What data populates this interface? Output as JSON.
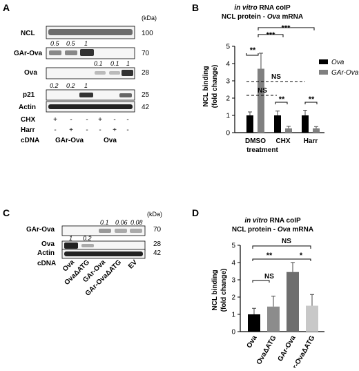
{
  "panels": {
    "A": {
      "letter": "A",
      "unit": "(kDa)",
      "blots": [
        {
          "label": "NCL",
          "mw": "100",
          "quant": []
        },
        {
          "label": "GAr-Ova",
          "mw": "70",
          "quant": [
            "0.5",
            "0.5",
            "1"
          ]
        },
        {
          "label": "Ova",
          "mw": "28",
          "quant": [
            "0.1",
            "0.1",
            "1"
          ]
        },
        {
          "label": "p21",
          "mw": "25",
          "quant": [
            "0.2",
            "0.2",
            "1"
          ]
        },
        {
          "label": "Actin",
          "mw": "42",
          "quant": []
        }
      ],
      "conditions": [
        {
          "label": "CHX",
          "marks": [
            "+",
            "-",
            "-",
            "+",
            "-",
            "-"
          ]
        },
        {
          "label": "Harr",
          "marks": [
            "-",
            "+",
            "-",
            "-",
            "+",
            "-"
          ]
        }
      ],
      "cdna_label": "cDNA",
      "cdna_groups": [
        "GAr-Ova",
        "Ova"
      ]
    },
    "B": {
      "letter": "B",
      "title_line1_italic": "in vitro",
      "title_line1_rest": " RNA coIP",
      "title_line2_main": "NCL protein - ",
      "title_line2_italic": "Ova",
      "title_line2_end": " mRNA",
      "ylabel_line1": "NCL binding",
      "ylabel_line2": "(fold change)",
      "xlabel": "treatment",
      "legend": [
        "Ova",
        "GAr-Ova"
      ],
      "sig": [
        "**",
        "***",
        "***",
        "NS",
        "NS",
        "**",
        "**"
      ]
    },
    "C": {
      "letter": "C",
      "unit": "(kDa)",
      "blots": [
        {
          "label": "GAr-Ova",
          "mw": "70",
          "quant": [
            "0.1",
            "0.06",
            "0.08"
          ]
        },
        {
          "label": "Ova",
          "mw": "28",
          "quant": [
            "1",
            "0.2"
          ]
        },
        {
          "label": "Actin",
          "mw": "42",
          "quant": []
        }
      ],
      "cdna_label": "cDNA",
      "lanes": [
        "Ova",
        "OvaΔATG",
        "GAr-Ova",
        "GAr-OvaΔATG",
        "EV"
      ]
    },
    "D": {
      "letter": "D",
      "title_line1_italic": "in vitro",
      "title_line1_rest": " RNA coIP",
      "title_line2_main": "NCL protein - ",
      "title_line2_italic": "Ova",
      "title_line2_end": " mRNA",
      "ylabel_line1": "NCL binding",
      "ylabel_line2": "(fold change)",
      "sig": [
        "NS",
        "**",
        "NS",
        "*"
      ]
    }
  },
  "chart_data": [
    {
      "type": "bar",
      "panel": "B",
      "categories": [
        "DMSO",
        "CHX",
        "Harr"
      ],
      "series": [
        {
          "name": "Ova",
          "color": "#000000",
          "values": [
            1.0,
            1.0,
            1.0
          ],
          "errors": [
            0.2,
            0.25,
            0.3
          ]
        },
        {
          "name": "GAr-Ova",
          "color": "#808080",
          "values": [
            3.7,
            0.25,
            0.25
          ],
          "errors": [
            0.9,
            0.12,
            0.1
          ]
        }
      ],
      "ylim": [
        0,
        5
      ],
      "yticks": [
        0,
        1,
        2,
        3,
        4,
        5
      ],
      "legend_position": "right"
    },
    {
      "type": "bar",
      "panel": "D",
      "categories": [
        "Ova",
        "OvaΔATG",
        "GAr-Ova",
        "GAr-OvaΔATG"
      ],
      "values": [
        1.0,
        1.45,
        3.45,
        1.5
      ],
      "errors": [
        0.35,
        0.6,
        0.55,
        0.65
      ],
      "colors": [
        "#000000",
        "#8c8c8c",
        "#6e6e6e",
        "#c8c8c8"
      ],
      "ylim": [
        0,
        5
      ],
      "yticks": [
        0,
        1,
        2,
        3,
        4,
        5
      ]
    }
  ]
}
